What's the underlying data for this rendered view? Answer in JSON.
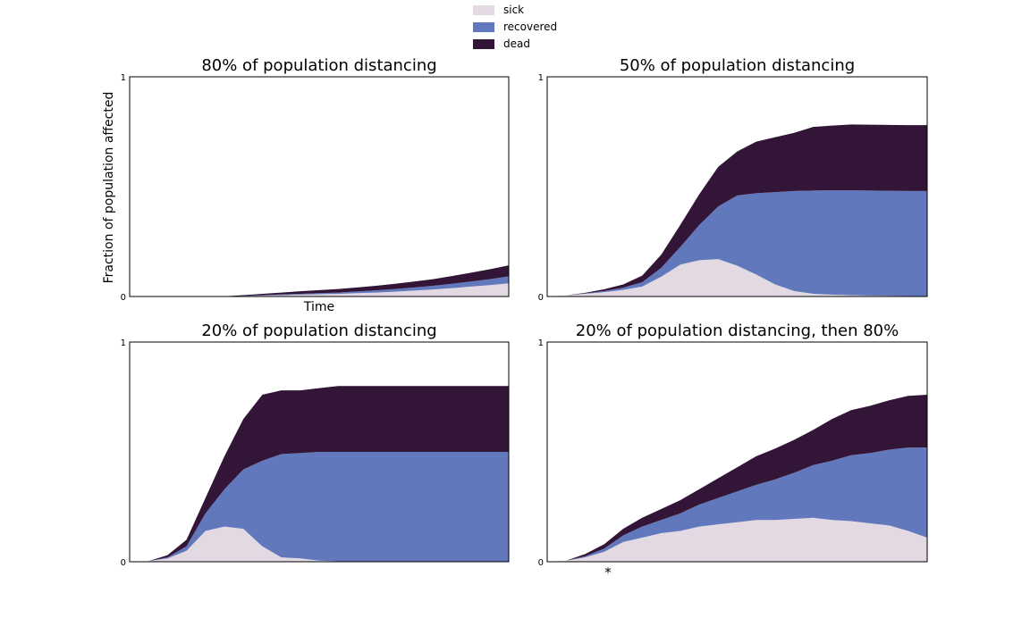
{
  "legend": {
    "items": [
      {
        "label": "sick",
        "color": "#e2d9e2"
      },
      {
        "label": "recovered",
        "color": "#6278bc"
      },
      {
        "label": "dead",
        "color": "#321537"
      }
    ]
  },
  "y_axis_label": "Fraction of population affected",
  "x_axis_label": "Time",
  "marker": "*",
  "chart_data": [
    {
      "type": "area",
      "stacked": true,
      "title": "80% of population distancing",
      "xlabel": "Time",
      "ylabel": "Fraction of population affected",
      "ylim": [
        0,
        1
      ],
      "xlim": [
        0,
        100
      ],
      "yticks": [
        "0",
        "1"
      ],
      "x": [
        0,
        5,
        10,
        15,
        20,
        25,
        30,
        35,
        40,
        45,
        50,
        55,
        60,
        65,
        70,
        75,
        80,
        85,
        90,
        95,
        100
      ],
      "series": [
        {
          "name": "sick",
          "values": [
            0,
            0,
            0,
            0,
            0,
            0,
            0.002,
            0.004,
            0.006,
            0.008,
            0.01,
            0.012,
            0.015,
            0.018,
            0.022,
            0.027,
            0.032,
            0.038,
            0.045,
            0.052,
            0.06
          ]
        },
        {
          "name": "recovered",
          "values": [
            0,
            0,
            0,
            0,
            0,
            0,
            0.001,
            0.002,
            0.003,
            0.004,
            0.005,
            0.006,
            0.008,
            0.01,
            0.012,
            0.014,
            0.017,
            0.02,
            0.023,
            0.027,
            0.032
          ]
        },
        {
          "name": "dead",
          "values": [
            0,
            0,
            0,
            0,
            0,
            0.001,
            0.003,
            0.006,
            0.009,
            0.012,
            0.014,
            0.016,
            0.018,
            0.021,
            0.024,
            0.027,
            0.03,
            0.035,
            0.04,
            0.045,
            0.05
          ]
        }
      ]
    },
    {
      "type": "area",
      "stacked": true,
      "title": "50% of population distancing",
      "xlabel": "",
      "ylabel": "",
      "ylim": [
        0,
        1
      ],
      "xlim": [
        0,
        100
      ],
      "yticks": [
        "0",
        "1"
      ],
      "x": [
        0,
        5,
        10,
        15,
        20,
        25,
        30,
        35,
        40,
        45,
        50,
        55,
        60,
        65,
        70,
        75,
        80,
        85,
        90,
        95,
        100
      ],
      "series": [
        {
          "name": "sick",
          "values": [
            0,
            0.005,
            0.012,
            0.02,
            0.03,
            0.045,
            0.09,
            0.145,
            0.165,
            0.17,
            0.14,
            0.1,
            0.055,
            0.025,
            0.012,
            0.008,
            0.006,
            0.004,
            0.003,
            0.002,
            0.002
          ]
        },
        {
          "name": "recovered",
          "values": [
            0,
            0,
            0.002,
            0.005,
            0.01,
            0.02,
            0.04,
            0.08,
            0.16,
            0.24,
            0.32,
            0.37,
            0.42,
            0.455,
            0.47,
            0.475,
            0.477,
            0.478,
            0.478,
            0.478,
            0.478
          ]
        },
        {
          "name": "dead",
          "values": [
            0,
            0,
            0.003,
            0.008,
            0.015,
            0.03,
            0.06,
            0.1,
            0.14,
            0.18,
            0.2,
            0.235,
            0.25,
            0.265,
            0.29,
            0.295,
            0.3,
            0.3,
            0.3,
            0.3,
            0.3
          ]
        }
      ]
    },
    {
      "type": "area",
      "stacked": true,
      "title": "20% of population distancing",
      "xlabel": "",
      "ylabel": "",
      "ylim": [
        0,
        1
      ],
      "xlim": [
        0,
        100
      ],
      "yticks": [
        "0",
        "1"
      ],
      "x": [
        0,
        5,
        10,
        15,
        20,
        25,
        30,
        35,
        40,
        45,
        50,
        55,
        60,
        65,
        70,
        75,
        80,
        85,
        90,
        95,
        100
      ],
      "series": [
        {
          "name": "sick",
          "values": [
            0,
            0.003,
            0.015,
            0.05,
            0.14,
            0.16,
            0.15,
            0.07,
            0.02,
            0.015,
            0.005,
            0.002,
            0.001,
            0,
            0,
            0,
            0,
            0,
            0,
            0,
            0
          ]
        },
        {
          "name": "recovered",
          "values": [
            0,
            0,
            0.005,
            0.02,
            0.08,
            0.17,
            0.27,
            0.39,
            0.47,
            0.48,
            0.495,
            0.498,
            0.499,
            0.5,
            0.5,
            0.5,
            0.5,
            0.5,
            0.5,
            0.5,
            0.5
          ]
        },
        {
          "name": "dead",
          "values": [
            0,
            0,
            0.01,
            0.03,
            0.07,
            0.15,
            0.23,
            0.3,
            0.29,
            0.285,
            0.29,
            0.3,
            0.3,
            0.3,
            0.3,
            0.3,
            0.3,
            0.3,
            0.3,
            0.3,
            0.3
          ]
        }
      ]
    },
    {
      "type": "area",
      "stacked": true,
      "title": "20% of population distancing, then 80%",
      "xlabel": "",
      "ylabel": "",
      "ylim": [
        0,
        1
      ],
      "xlim": [
        0,
        100
      ],
      "yticks": [
        "0",
        "1"
      ],
      "annotation": {
        "text": "*",
        "x": 16
      },
      "x": [
        0,
        5,
        10,
        15,
        20,
        25,
        30,
        35,
        40,
        45,
        50,
        55,
        60,
        65,
        70,
        75,
        80,
        85,
        90,
        95,
        100
      ],
      "series": [
        {
          "name": "sick",
          "values": [
            0,
            0.005,
            0.02,
            0.045,
            0.09,
            0.11,
            0.13,
            0.14,
            0.16,
            0.17,
            0.18,
            0.19,
            0.19,
            0.195,
            0.2,
            0.19,
            0.185,
            0.175,
            0.165,
            0.14,
            0.11
          ]
        },
        {
          "name": "recovered",
          "values": [
            0,
            0,
            0.005,
            0.015,
            0.03,
            0.05,
            0.06,
            0.08,
            0.1,
            0.12,
            0.14,
            0.16,
            0.185,
            0.21,
            0.24,
            0.27,
            0.3,
            0.32,
            0.345,
            0.38,
            0.41
          ]
        },
        {
          "name": "dead",
          "values": [
            0,
            0,
            0.01,
            0.02,
            0.03,
            0.04,
            0.05,
            0.06,
            0.07,
            0.09,
            0.11,
            0.13,
            0.14,
            0.15,
            0.16,
            0.19,
            0.205,
            0.215,
            0.225,
            0.235,
            0.24
          ]
        }
      ]
    }
  ]
}
